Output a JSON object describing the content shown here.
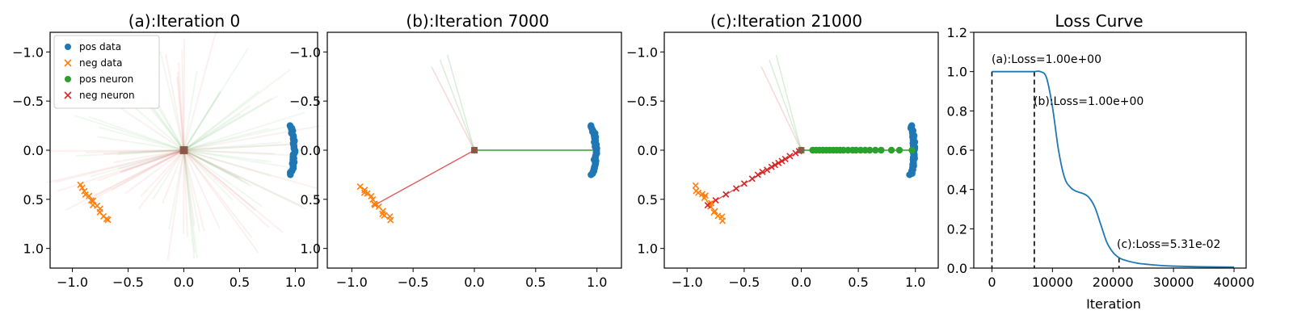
{
  "colors": {
    "pos_data": "#1f77b4",
    "neg_data": "#ff7f0e",
    "pos_neuron": "#2ca02c",
    "neg_neuron": "#d62728"
  },
  "chart_data": [
    {
      "type": "scatter",
      "title": "(a):Iteration 0",
      "xlim": [
        -1.2,
        1.2
      ],
      "ylim": [
        1.2,
        -1.2
      ],
      "y_inverted": true,
      "xticks": [
        "-1.0",
        "-0.5",
        "0.0",
        "0.5",
        "1.0"
      ],
      "yticks": [
        "-1.0",
        "-0.5",
        "0.0",
        "0.5",
        "1.0"
      ],
      "legend": {
        "position": "top-left",
        "entries": [
          {
            "label": "pos data",
            "marker": "circle",
            "color": "#1f77b4"
          },
          {
            "label": "neg data",
            "marker": "x",
            "color": "#ff7f0e"
          },
          {
            "label": "pos neuron",
            "marker": "circle",
            "color": "#2ca02c"
          },
          {
            "label": "neg neuron",
            "marker": "x",
            "color": "#d62728"
          }
        ]
      },
      "pos_data": {
        "x_range": [
          0.95,
          1.0
        ],
        "y_range": [
          -0.25,
          0.25
        ],
        "count": 40
      },
      "neg_data": {
        "start": [
          -0.93,
          0.37
        ],
        "end": [
          -0.68,
          0.72
        ],
        "count": 14
      },
      "pos_neuron_points": [
        [
          0.0,
          0.0
        ]
      ],
      "neg_neuron_points": [
        [
          0.0,
          0.0
        ]
      ],
      "neuron_lines": "faint lines radiating from the origin in all directions"
    },
    {
      "type": "scatter",
      "title": "(b):Iteration 7000",
      "xlim": [
        -1.2,
        1.2
      ],
      "ylim": [
        1.2,
        -1.2
      ],
      "y_inverted": true,
      "xticks": [
        "-1.0",
        "-0.5",
        "0.0",
        "0.5",
        "1.0"
      ],
      "yticks": [
        "-1.0",
        "-0.5",
        "0.0",
        "0.5",
        "1.0"
      ],
      "pos_data": {
        "x_range": [
          0.95,
          1.0
        ],
        "y_range": [
          -0.25,
          0.25
        ],
        "count": 40
      },
      "neg_data": {
        "start": [
          -0.93,
          0.37
        ],
        "end": [
          -0.68,
          0.72
        ],
        "count": 14
      },
      "pos_neuron_points": [
        [
          0.0,
          0.0
        ]
      ],
      "neg_neuron_points": [
        [
          0.0,
          0.0
        ]
      ],
      "pos_line": {
        "from": [
          0.0,
          0.0
        ],
        "to": [
          0.97,
          0.0
        ]
      },
      "neg_line": {
        "from": [
          0.0,
          0.0
        ],
        "to": [
          -0.83,
          0.57
        ]
      },
      "faint_lines": [
        [
          -0.22,
          -0.97
        ],
        [
          -0.35,
          -0.85
        ],
        [
          -0.28,
          -0.92
        ]
      ]
    },
    {
      "type": "scatter",
      "title": "(c):Iteration 21000",
      "xlim": [
        -1.2,
        1.2
      ],
      "ylim": [
        1.2,
        -1.2
      ],
      "y_inverted": true,
      "xticks": [
        "-1.0",
        "-0.5",
        "0.0",
        "0.5",
        "1.0"
      ],
      "yticks": [
        "-1.0",
        "-0.5",
        "0.0",
        "0.5",
        "1.0"
      ],
      "pos_data": {
        "x_range": [
          0.95,
          1.0
        ],
        "y_range": [
          -0.25,
          0.25
        ],
        "count": 40
      },
      "neg_data": {
        "start": [
          -0.93,
          0.37
        ],
        "end": [
          -0.68,
          0.72
        ],
        "count": 14
      },
      "pos_neuron_points": [
        [
          0.0,
          0.0
        ],
        [
          0.1,
          0.0
        ],
        [
          0.13,
          0.0
        ],
        [
          0.16,
          0.0
        ],
        [
          0.19,
          0.0
        ],
        [
          0.22,
          0.0
        ],
        [
          0.25,
          0.0
        ],
        [
          0.28,
          0.0
        ],
        [
          0.31,
          0.0
        ],
        [
          0.34,
          0.0
        ],
        [
          0.37,
          0.0
        ],
        [
          0.41,
          0.0
        ],
        [
          0.45,
          0.0
        ],
        [
          0.48,
          0.0
        ],
        [
          0.52,
          0.0
        ],
        [
          0.56,
          0.0
        ],
        [
          0.6,
          0.0
        ],
        [
          0.65,
          0.0
        ],
        [
          0.7,
          0.0
        ],
        [
          0.79,
          0.0
        ],
        [
          0.86,
          0.0
        ],
        [
          0.97,
          0.0
        ]
      ],
      "neg_neuron_points": [
        [
          -0.02,
          0.01
        ],
        [
          -0.05,
          0.03
        ],
        [
          -0.1,
          0.06
        ],
        [
          -0.14,
          0.09
        ],
        [
          -0.17,
          0.11
        ],
        [
          -0.2,
          0.13
        ],
        [
          -0.23,
          0.15
        ],
        [
          -0.26,
          0.17
        ],
        [
          -0.3,
          0.2
        ],
        [
          -0.34,
          0.22
        ],
        [
          -0.38,
          0.25
        ],
        [
          -0.43,
          0.29
        ],
        [
          -0.5,
          0.34
        ],
        [
          -0.57,
          0.39
        ],
        [
          -0.66,
          0.45
        ],
        [
          -0.75,
          0.51
        ],
        [
          -0.82,
          0.56
        ]
      ],
      "pos_line": {
        "from": [
          0.0,
          0.0
        ],
        "to": [
          0.97,
          0.0
        ]
      },
      "neg_line": {
        "from": [
          0.0,
          0.0
        ],
        "to": [
          -0.82,
          0.56
        ]
      },
      "faint_lines": [
        [
          -0.22,
          -0.97
        ],
        [
          -0.35,
          -0.85
        ],
        [
          -0.28,
          -0.92
        ]
      ]
    },
    {
      "type": "line",
      "title": "Loss Curve",
      "xlabel": "Iteration",
      "ylabel": "",
      "xlim": [
        -3000,
        42000
      ],
      "ylim": [
        0.0,
        1.2
      ],
      "xticks": [
        0,
        10000,
        20000,
        30000,
        40000
      ],
      "xtick_labels": [
        "0",
        "10000",
        "20000",
        "30000",
        "40000"
      ],
      "yticks": [
        0.0,
        0.2,
        0.4,
        0.6,
        0.8,
        1.0,
        1.2
      ],
      "ytick_labels": [
        "0.0",
        "0.2",
        "0.4",
        "0.6",
        "0.8",
        "1.0",
        "1.2"
      ],
      "series": [
        {
          "color": "#1f77b4",
          "x": [
            0,
            2000,
            4000,
            6000,
            7000,
            8000,
            9000,
            10000,
            11000,
            12000,
            13000,
            14000,
            15000,
            16000,
            17000,
            18000,
            19000,
            20000,
            21000,
            22000,
            24000,
            26000,
            28000,
            30000,
            34000,
            40000
          ],
          "y": [
            1.0,
            1.0,
            1.0,
            1.0,
            1.0,
            1.0,
            0.97,
            0.82,
            0.6,
            0.46,
            0.41,
            0.39,
            0.38,
            0.36,
            0.31,
            0.22,
            0.13,
            0.08,
            0.053,
            0.04,
            0.025,
            0.018,
            0.013,
            0.01,
            0.007,
            0.005
          ]
        }
      ],
      "annotations": [
        {
          "text": "(a):Loss=1.00e+00",
          "x": 0,
          "y": 1.0
        },
        {
          "text": "(b):Loss=1.00e+00",
          "x": 7000,
          "y": 1.0
        },
        {
          "text": "(c):Loss=5.31e-02",
          "x": 21000,
          "y": 0.0531
        }
      ]
    }
  ]
}
